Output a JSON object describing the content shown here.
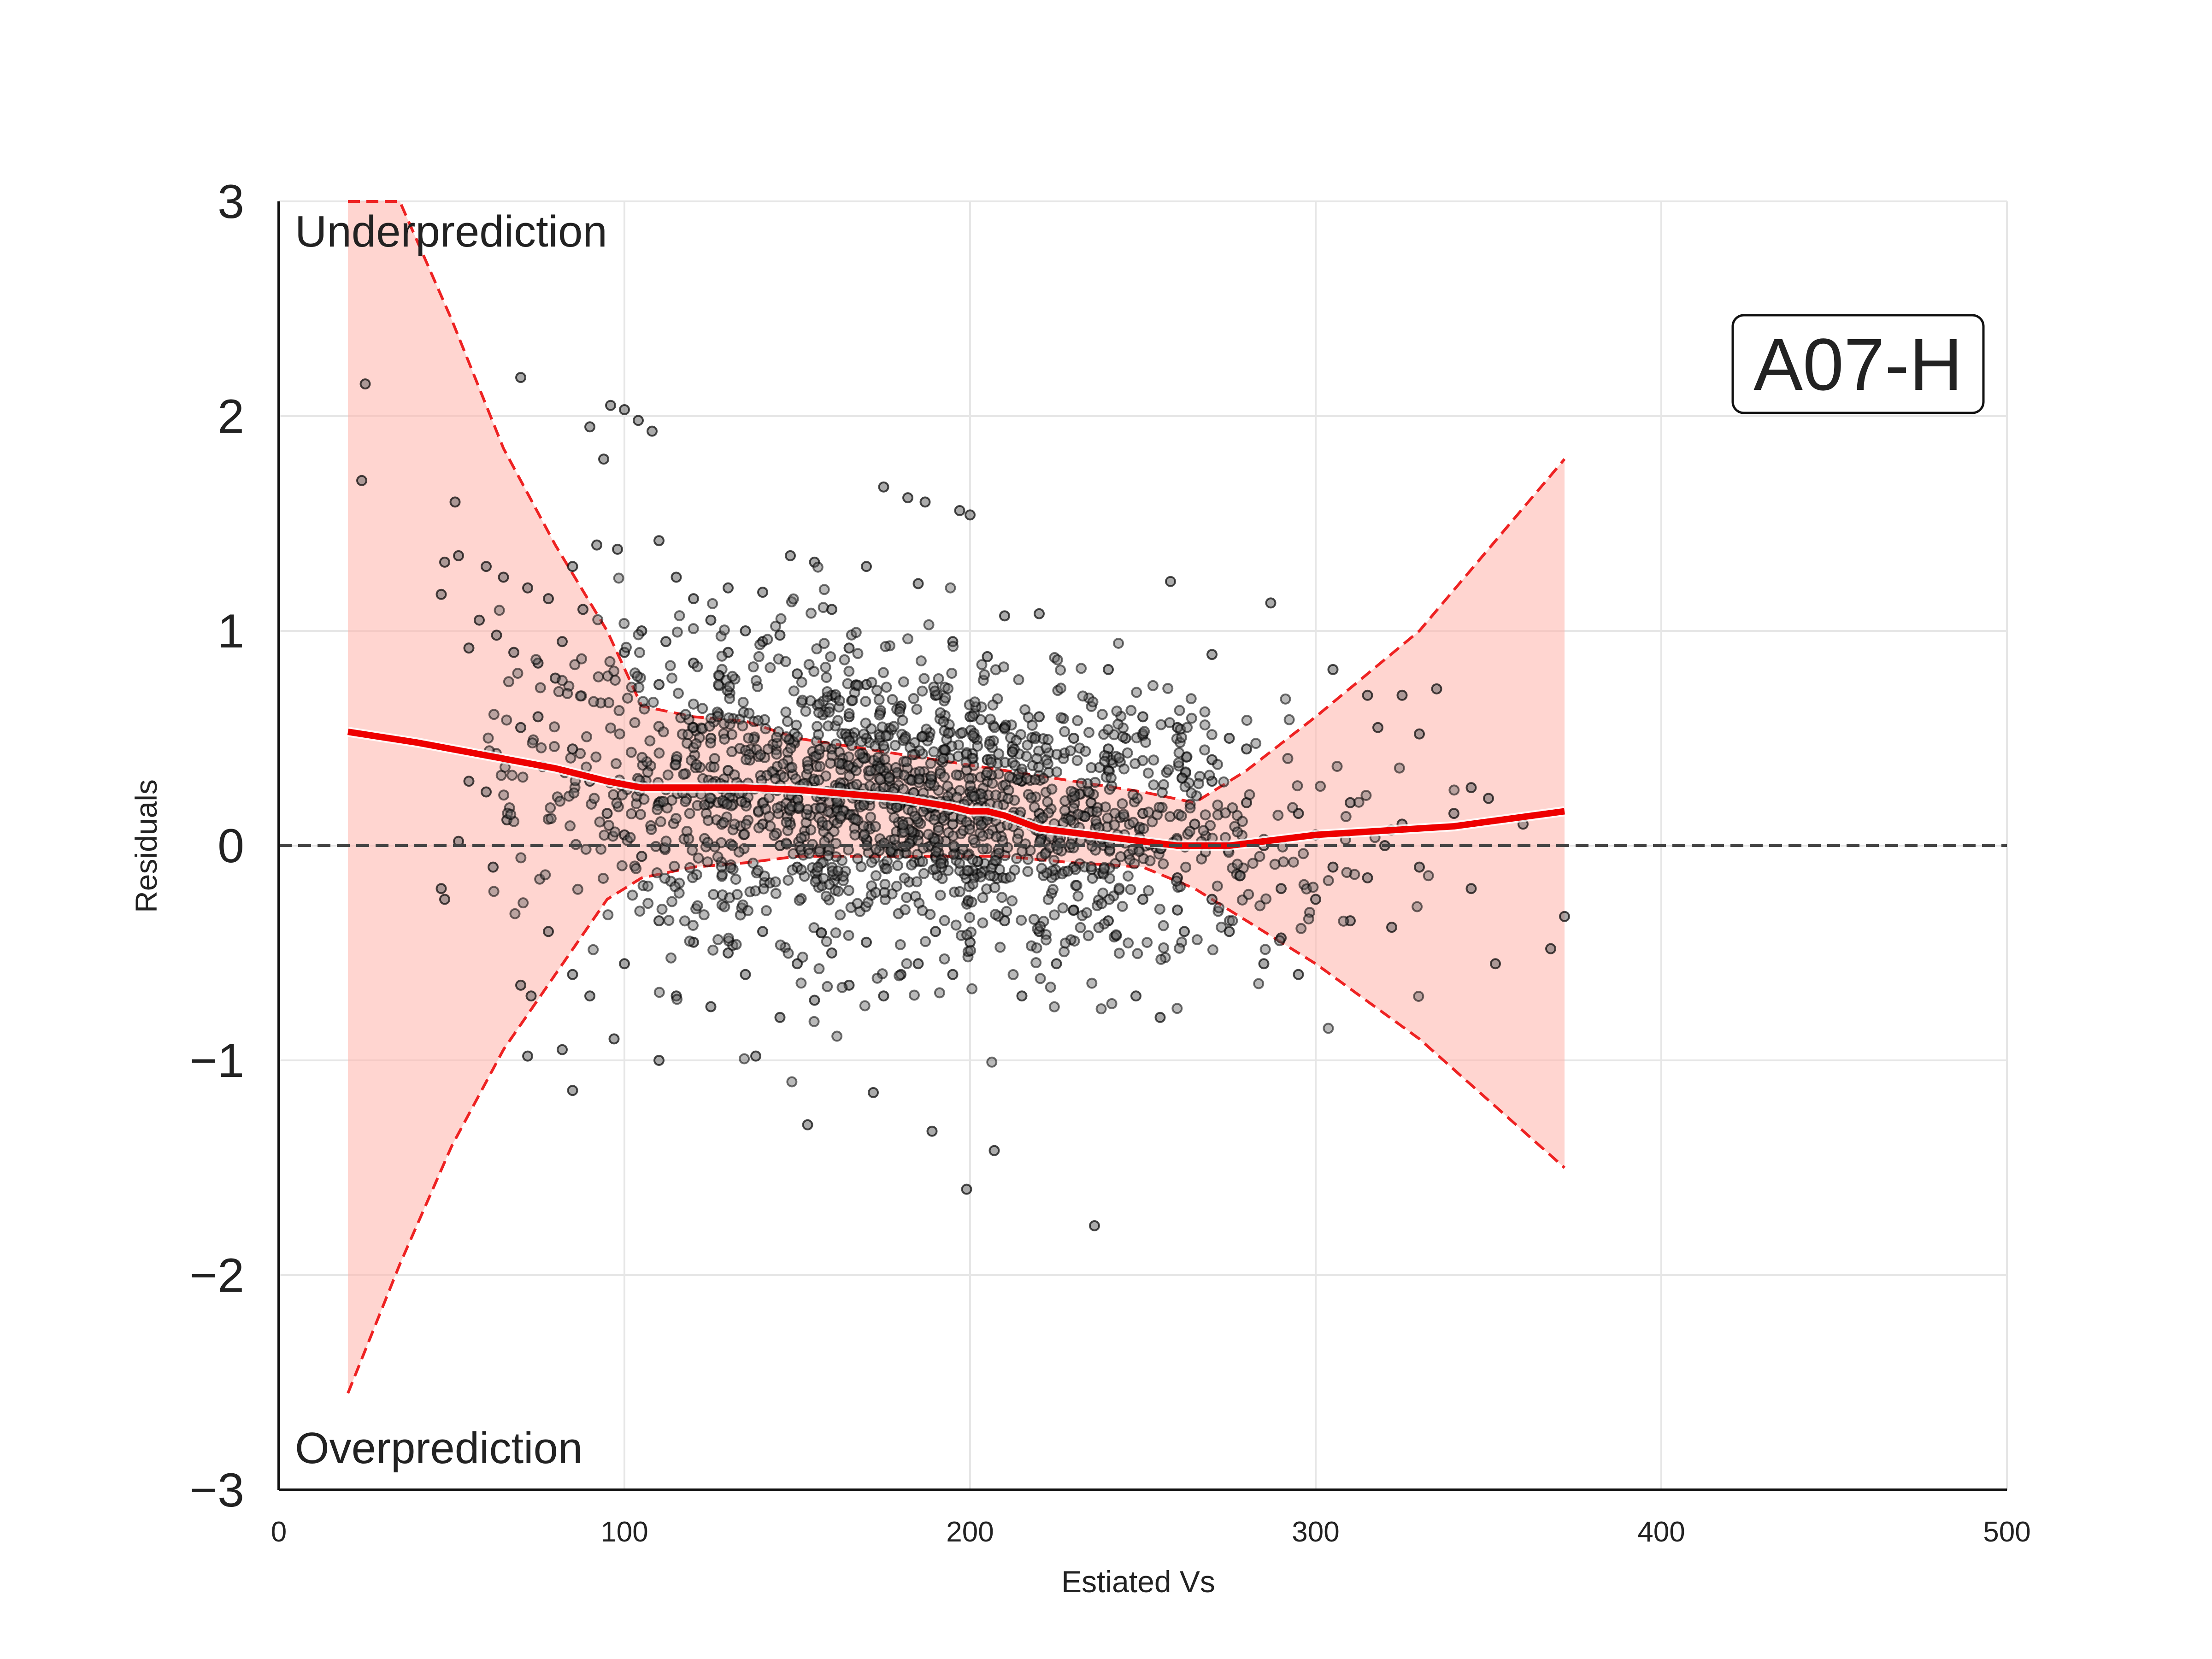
{
  "chart_data": {
    "type": "scatter",
    "title": "",
    "xlabel": "Estiated Vs",
    "ylabel": "Residuals",
    "xlim": [
      0,
      500
    ],
    "ylim": [
      -3,
      3
    ],
    "x_ticks": [
      0,
      100,
      200,
      300,
      400,
      500
    ],
    "y_ticks": [
      -3,
      -2,
      -1,
      0,
      1,
      2,
      3
    ],
    "y_tick_labels": [
      "−3",
      "−2",
      "−1",
      "0",
      "1",
      "2",
      "3"
    ],
    "grid": true,
    "zero_line": 0,
    "annotations": {
      "top_left": "Underprediction",
      "bottom_left": "Overprediction",
      "panel_label": "A07-H"
    },
    "colors": {
      "points": "#000000",
      "trend": "#ee0000",
      "band_fill": "#ffb3aa",
      "band_edge": "#ee2222",
      "zero_line": "#444444"
    },
    "series": [
      {
        "type": "line",
        "x": [
          20,
          40,
          60,
          80,
          95,
          105,
          120,
          135,
          150,
          165,
          180,
          195,
          200,
          205,
          210,
          220,
          240,
          260,
          275,
          300,
          340,
          372
        ],
        "y": [
          0.53,
          0.48,
          0.42,
          0.36,
          0.3,
          0.27,
          0.27,
          0.27,
          0.26,
          0.24,
          0.22,
          0.18,
          0.16,
          0.16,
          0.14,
          0.08,
          0.04,
          0.0,
          0.0,
          0.05,
          0.09,
          0.16
        ]
      },
      {
        "type": "band",
        "x": [
          20,
          35,
          50,
          65,
          80,
          95,
          105,
          120,
          135,
          150,
          170,
          190,
          210,
          230,
          250,
          265,
          280,
          300,
          330,
          372
        ],
        "upper": [
          3.0,
          3.0,
          2.45,
          1.85,
          1.4,
          1.0,
          0.65,
          0.6,
          0.58,
          0.5,
          0.45,
          0.4,
          0.35,
          0.3,
          0.25,
          0.2,
          0.35,
          0.6,
          1.0,
          1.8
        ],
        "lower": [
          -2.55,
          -1.95,
          -1.4,
          -0.95,
          -0.6,
          -0.25,
          -0.15,
          -0.1,
          -0.08,
          -0.05,
          -0.05,
          -0.05,
          -0.05,
          -0.08,
          -0.1,
          -0.2,
          -0.35,
          -0.55,
          -0.9,
          -1.5
        ]
      },
      {
        "type": "scatter",
        "description_points": "approximate sample of residual points",
        "points": [
          [
            25,
            2.15
          ],
          [
            24,
            1.7
          ],
          [
            51,
            1.6
          ],
          [
            70,
            2.18
          ],
          [
            96,
            2.05
          ],
          [
            100,
            2.03
          ],
          [
            90,
            1.95
          ],
          [
            104,
            1.98
          ],
          [
            108,
            1.93
          ],
          [
            94,
            1.8
          ],
          [
            48,
            1.32
          ],
          [
            52,
            1.35
          ],
          [
            60,
            1.3
          ],
          [
            65,
            1.25
          ],
          [
            72,
            1.2
          ],
          [
            78,
            1.15
          ],
          [
            85,
            1.3
          ],
          [
            92,
            1.4
          ],
          [
            98,
            1.38
          ],
          [
            110,
            1.42
          ],
          [
            47,
            1.17
          ],
          [
            58,
            1.05
          ],
          [
            63,
            0.98
          ],
          [
            55,
            0.92
          ],
          [
            68,
            0.9
          ],
          [
            75,
            0.85
          ],
          [
            82,
            0.95
          ],
          [
            88,
            1.1
          ],
          [
            115,
            1.25
          ],
          [
            120,
            1.15
          ],
          [
            175,
            1.67
          ],
          [
            182,
            1.62
          ],
          [
            187,
            1.6
          ],
          [
            197,
            1.56
          ],
          [
            200,
            1.54
          ],
          [
            148,
            1.35
          ],
          [
            155,
            1.32
          ],
          [
            170,
            1.3
          ],
          [
            185,
            1.22
          ],
          [
            258,
            1.23
          ],
          [
            287,
            1.13
          ],
          [
            140,
            1.18
          ],
          [
            130,
            1.2
          ],
          [
            160,
            1.1
          ],
          [
            210,
            1.07
          ],
          [
            220,
            1.08
          ],
          [
            240,
            0.82
          ],
          [
            270,
            0.89
          ],
          [
            305,
            0.82
          ],
          [
            335,
            0.73
          ],
          [
            315,
            0.7
          ],
          [
            325,
            0.7
          ],
          [
            318,
            0.55
          ],
          [
            330,
            0.52
          ],
          [
            345,
            0.27
          ],
          [
            350,
            0.22
          ],
          [
            340,
            0.15
          ],
          [
            360,
            0.1
          ],
          [
            372,
            -0.33
          ],
          [
            368,
            -0.48
          ],
          [
            352,
            -0.55
          ],
          [
            345,
            -0.2
          ],
          [
            322,
            -0.38
          ],
          [
            310,
            -0.35
          ],
          [
            300,
            -0.25
          ],
          [
            290,
            -0.43
          ],
          [
            295,
            -0.6
          ],
          [
            285,
            -0.55
          ],
          [
            275,
            -0.4
          ],
          [
            262,
            -0.4
          ],
          [
            248,
            -0.7
          ],
          [
            255,
            -0.8
          ],
          [
            236,
            -1.77
          ],
          [
            199,
            -1.6
          ],
          [
            207,
            -1.42
          ],
          [
            189,
            -1.33
          ],
          [
            172,
            -1.15
          ],
          [
            153,
            -1.3
          ],
          [
            138,
            -0.98
          ],
          [
            110,
            -1.0
          ],
          [
            97,
            -0.9
          ],
          [
            85,
            -1.14
          ],
          [
            82,
            -0.95
          ],
          [
            72,
            -0.98
          ],
          [
            73,
            -0.7
          ],
          [
            70,
            -0.65
          ],
          [
            78,
            -0.4
          ],
          [
            85,
            -0.6
          ],
          [
            90,
            -0.7
          ],
          [
            100,
            -0.55
          ],
          [
            48,
            -0.25
          ],
          [
            47,
            -0.2
          ],
          [
            52,
            0.02
          ],
          [
            55,
            0.3
          ],
          [
            60,
            0.25
          ],
          [
            62,
            -0.1
          ],
          [
            66,
            0.12
          ],
          [
            70,
            0.55
          ],
          [
            75,
            0.6
          ],
          [
            80,
            0.78
          ],
          [
            85,
            0.45
          ],
          [
            90,
            0.3
          ],
          [
            95,
            0.15
          ],
          [
            100,
            0.05
          ],
          [
            105,
            -0.05
          ],
          [
            110,
            0.2
          ],
          [
            115,
            0.4
          ],
          [
            120,
            0.55
          ],
          [
            125,
            0.5
          ],
          [
            130,
            0.35
          ],
          [
            135,
            0.2
          ],
          [
            140,
            0.1
          ],
          [
            145,
            0.0
          ],
          [
            150,
            -0.1
          ],
          [
            155,
            0.3
          ],
          [
            160,
            0.45
          ],
          [
            165,
            0.6
          ],
          [
            170,
            0.5
          ],
          [
            175,
            0.35
          ],
          [
            180,
            0.2
          ],
          [
            185,
            0.05
          ],
          [
            190,
            -0.05
          ],
          [
            195,
            0.1
          ],
          [
            200,
            0.25
          ],
          [
            205,
            0.4
          ],
          [
            210,
            0.55
          ],
          [
            215,
            0.3
          ],
          [
            220,
            0.15
          ],
          [
            225,
            0.0
          ],
          [
            230,
            -0.1
          ],
          [
            235,
            0.2
          ],
          [
            240,
            0.35
          ],
          [
            245,
            0.5
          ],
          [
            250,
            0.15
          ],
          [
            255,
            0.0
          ],
          [
            260,
            -0.15
          ],
          [
            265,
            0.1
          ],
          [
            270,
            0.3
          ],
          [
            275,
            0.5
          ],
          [
            280,
            0.2
          ],
          [
            285,
            0.0
          ],
          [
            290,
            -0.2
          ],
          [
            295,
            0.15
          ],
          [
            300,
            0.05
          ],
          [
            305,
            -0.1
          ],
          [
            310,
            0.2
          ],
          [
            315,
            -0.15
          ],
          [
            320,
            0.0
          ],
          [
            325,
            0.1
          ],
          [
            330,
            -0.1
          ],
          [
            110,
            0.75
          ],
          [
            120,
            0.85
          ],
          [
            130,
            0.9
          ],
          [
            140,
            0.95
          ],
          [
            150,
            0.8
          ],
          [
            160,
            0.7
          ],
          [
            170,
            0.75
          ],
          [
            180,
            0.65
          ],
          [
            190,
            0.7
          ],
          [
            200,
            0.6
          ],
          [
            210,
            0.55
          ],
          [
            220,
            0.6
          ],
          [
            230,
            0.5
          ],
          [
            240,
            0.45
          ],
          [
            250,
            0.6
          ],
          [
            260,
            0.55
          ],
          [
            270,
            0.4
          ],
          [
            280,
            0.45
          ],
          [
            110,
            -0.35
          ],
          [
            120,
            -0.45
          ],
          [
            130,
            -0.5
          ],
          [
            140,
            -0.4
          ],
          [
            150,
            -0.55
          ],
          [
            160,
            -0.5
          ],
          [
            170,
            -0.45
          ],
          [
            180,
            -0.6
          ],
          [
            190,
            -0.4
          ],
          [
            200,
            -0.45
          ],
          [
            210,
            -0.35
          ],
          [
            220,
            -0.4
          ],
          [
            230,
            -0.3
          ],
          [
            240,
            -0.35
          ],
          [
            250,
            -0.25
          ],
          [
            260,
            -0.3
          ],
          [
            270,
            -0.25
          ],
          [
            115,
            -0.7
          ],
          [
            125,
            -0.75
          ],
          [
            135,
            -0.6
          ],
          [
            145,
            -0.8
          ],
          [
            155,
            -0.72
          ],
          [
            165,
            -0.65
          ],
          [
            175,
            -0.7
          ],
          [
            185,
            -0.55
          ],
          [
            195,
            -0.6
          ],
          [
            215,
            -0.7
          ],
          [
            225,
            -0.55
          ],
          [
            100,
            0.9
          ],
          [
            105,
            1.0
          ],
          [
            112,
            0.95
          ],
          [
            125,
            1.05
          ],
          [
            135,
            1.0
          ],
          [
            145,
            0.98
          ],
          [
            165,
            0.92
          ],
          [
            195,
            0.95
          ],
          [
            205,
            0.88
          ]
        ]
      }
    ]
  }
}
